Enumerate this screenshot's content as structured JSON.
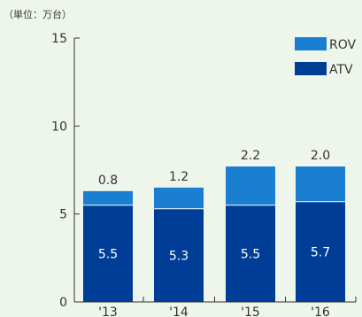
{
  "chart_data": {
    "type": "bar",
    "stacked": true,
    "unit_label": "（単位：万台）",
    "categories": [
      "'13",
      "'14",
      "'15",
      "'16"
    ],
    "series": [
      {
        "name": "ATV",
        "color": "#003d96",
        "values": [
          5.5,
          5.3,
          5.5,
          5.7
        ]
      },
      {
        "name": "ROV",
        "color": "#1a7fd0",
        "values": [
          0.8,
          1.2,
          2.2,
          2.0
        ]
      }
    ],
    "y_ticks": [
      0,
      5,
      10,
      15
    ],
    "ylim": [
      0,
      15
    ],
    "grid": false,
    "legend_position": "top-right"
  }
}
